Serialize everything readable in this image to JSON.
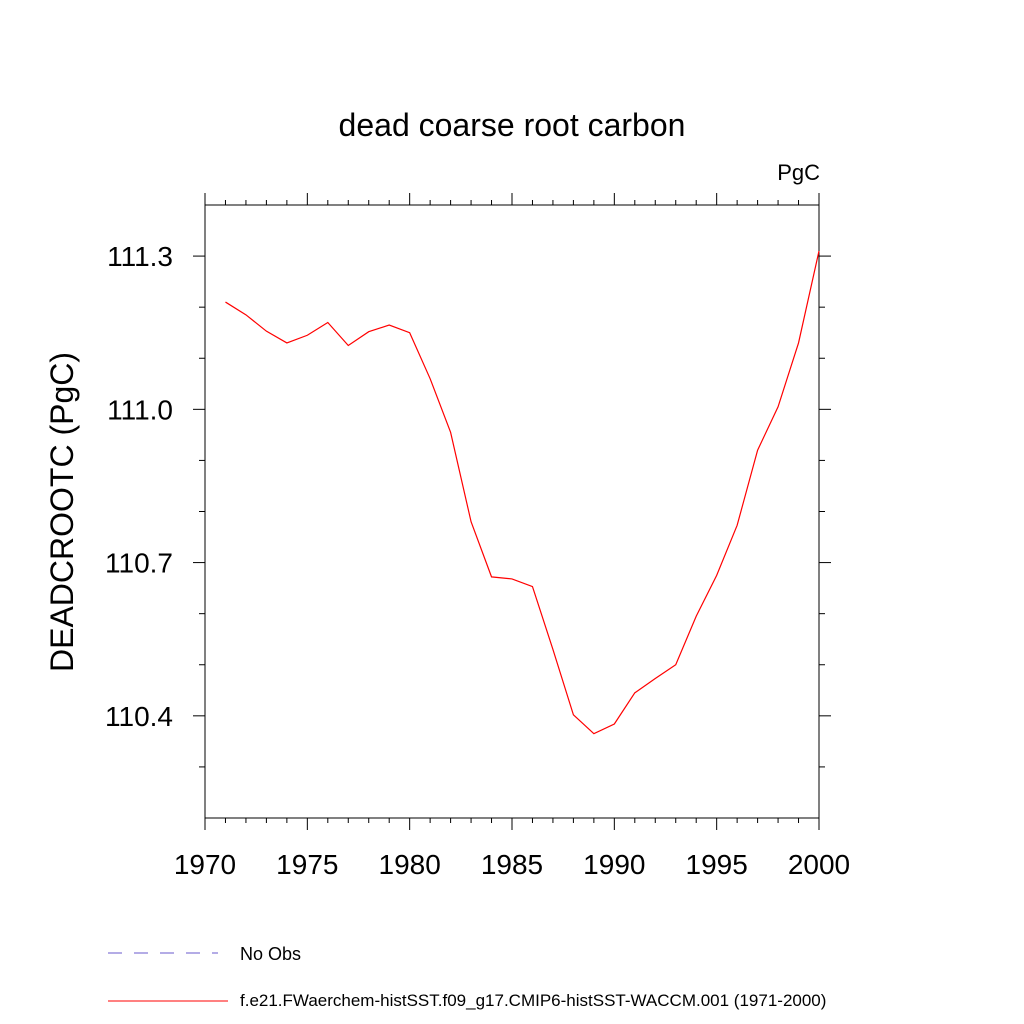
{
  "chart_data": {
    "type": "line",
    "title": "dead coarse root carbon",
    "units": "PgC",
    "ylabel": "DEADCROOTC  (PgC)",
    "xlabel": "",
    "xlim": [
      1970,
      2000
    ],
    "ylim": [
      110.2,
      111.4
    ],
    "x_ticks": [
      1970,
      1975,
      1980,
      1985,
      1990,
      1995,
      2000
    ],
    "x_tick_labels": [
      "1970",
      "1975",
      "1980",
      "1985",
      "1990",
      "1995",
      "2000"
    ],
    "y_ticks": [
      110.4,
      110.7,
      111.0,
      111.3
    ],
    "y_tick_labels": [
      "110.4",
      "110.7",
      "111.0",
      "111.3"
    ],
    "legend": [
      {
        "label": "No Obs",
        "style": "dashed",
        "color": "#6a5acd"
      },
      {
        "label": "f.e21.FWaerchem-histSST.f09_g17.CMIP6-histSST-WACCM.001 (1971-2000)",
        "style": "solid",
        "color": "#ff0000"
      }
    ],
    "series": [
      {
        "name": "f.e21.FWaerchem-histSST.f09_g17.CMIP6-histSST-WACCM.001 (1971-2000)",
        "color": "#ff0000",
        "x": [
          1971,
          1972,
          1973,
          1974,
          1975,
          1976,
          1977,
          1978,
          1979,
          1980,
          1981,
          1982,
          1983,
          1984,
          1985,
          1986,
          1987,
          1988,
          1989,
          1990,
          1991,
          1992,
          1993,
          1994,
          1995,
          1996,
          1997,
          1998,
          1999,
          2000
        ],
        "values": [
          111.21,
          111.185,
          111.153,
          111.13,
          111.145,
          111.17,
          111.125,
          111.152,
          111.165,
          111.15,
          111.06,
          110.955,
          110.78,
          110.672,
          110.668,
          110.653,
          110.53,
          110.402,
          110.365,
          110.384,
          110.445,
          110.473,
          110.5,
          110.595,
          110.675,
          110.773,
          110.92,
          111.005,
          111.13,
          111.31
        ]
      }
    ]
  }
}
